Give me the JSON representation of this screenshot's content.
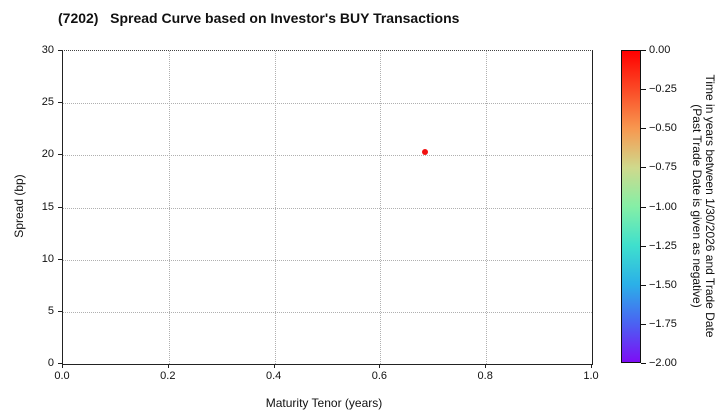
{
  "chart_data": {
    "type": "scatter",
    "title": "(7202)   Spread Curve based on Investor's BUY Transactions",
    "xlabel": "Maturity Tenor (years)",
    "ylabel": "Spread (bp)",
    "xlim": [
      0.0,
      1.0
    ],
    "ylim": [
      0,
      30
    ],
    "xticks": [
      {
        "value": 0.0,
        "label": "0.0"
      },
      {
        "value": 0.2,
        "label": "0.2"
      },
      {
        "value": 0.4,
        "label": "0.4"
      },
      {
        "value": 0.6,
        "label": "0.6"
      },
      {
        "value": 0.8,
        "label": "0.8"
      },
      {
        "value": 1.0,
        "label": "1.0"
      }
    ],
    "yticks": [
      {
        "value": 0,
        "label": "0"
      },
      {
        "value": 5,
        "label": "5"
      },
      {
        "value": 10,
        "label": "10"
      },
      {
        "value": 15,
        "label": "15"
      },
      {
        "value": 20,
        "label": "20"
      },
      {
        "value": 25,
        "label": "25"
      },
      {
        "value": 30,
        "label": "30"
      }
    ],
    "grid": true,
    "grid_style": "dotted",
    "points": [
      {
        "x": 0.685,
        "y": 20.3,
        "color_value": 0.0,
        "color": "#f21010"
      }
    ],
    "colorbar": {
      "vmax": 0.0,
      "vmin": -2.0,
      "ticks": [
        {
          "value": 0.0,
          "label": "0.00"
        },
        {
          "value": -0.25,
          "label": "−0.25"
        },
        {
          "value": -0.5,
          "label": "−0.50"
        },
        {
          "value": -0.75,
          "label": "−0.75"
        },
        {
          "value": -1.0,
          "label": "−1.00"
        },
        {
          "value": -1.25,
          "label": "−1.25"
        },
        {
          "value": -1.5,
          "label": "−1.50"
        },
        {
          "value": -1.75,
          "label": "−1.75"
        },
        {
          "value": -2.0,
          "label": "−2.00"
        }
      ],
      "gradient_top_to_bottom": [
        "#ff0000",
        "#fb4b26",
        "#f79850",
        "#cfd98c",
        "#85efa6",
        "#3fe0cd",
        "#2bb0e8",
        "#4a63f2",
        "#7d0df5"
      ],
      "label_line1": "Time in years between 1/30/2026 and Trade Date",
      "label_line2": "(Past Trade Date is given as negative)"
    }
  }
}
